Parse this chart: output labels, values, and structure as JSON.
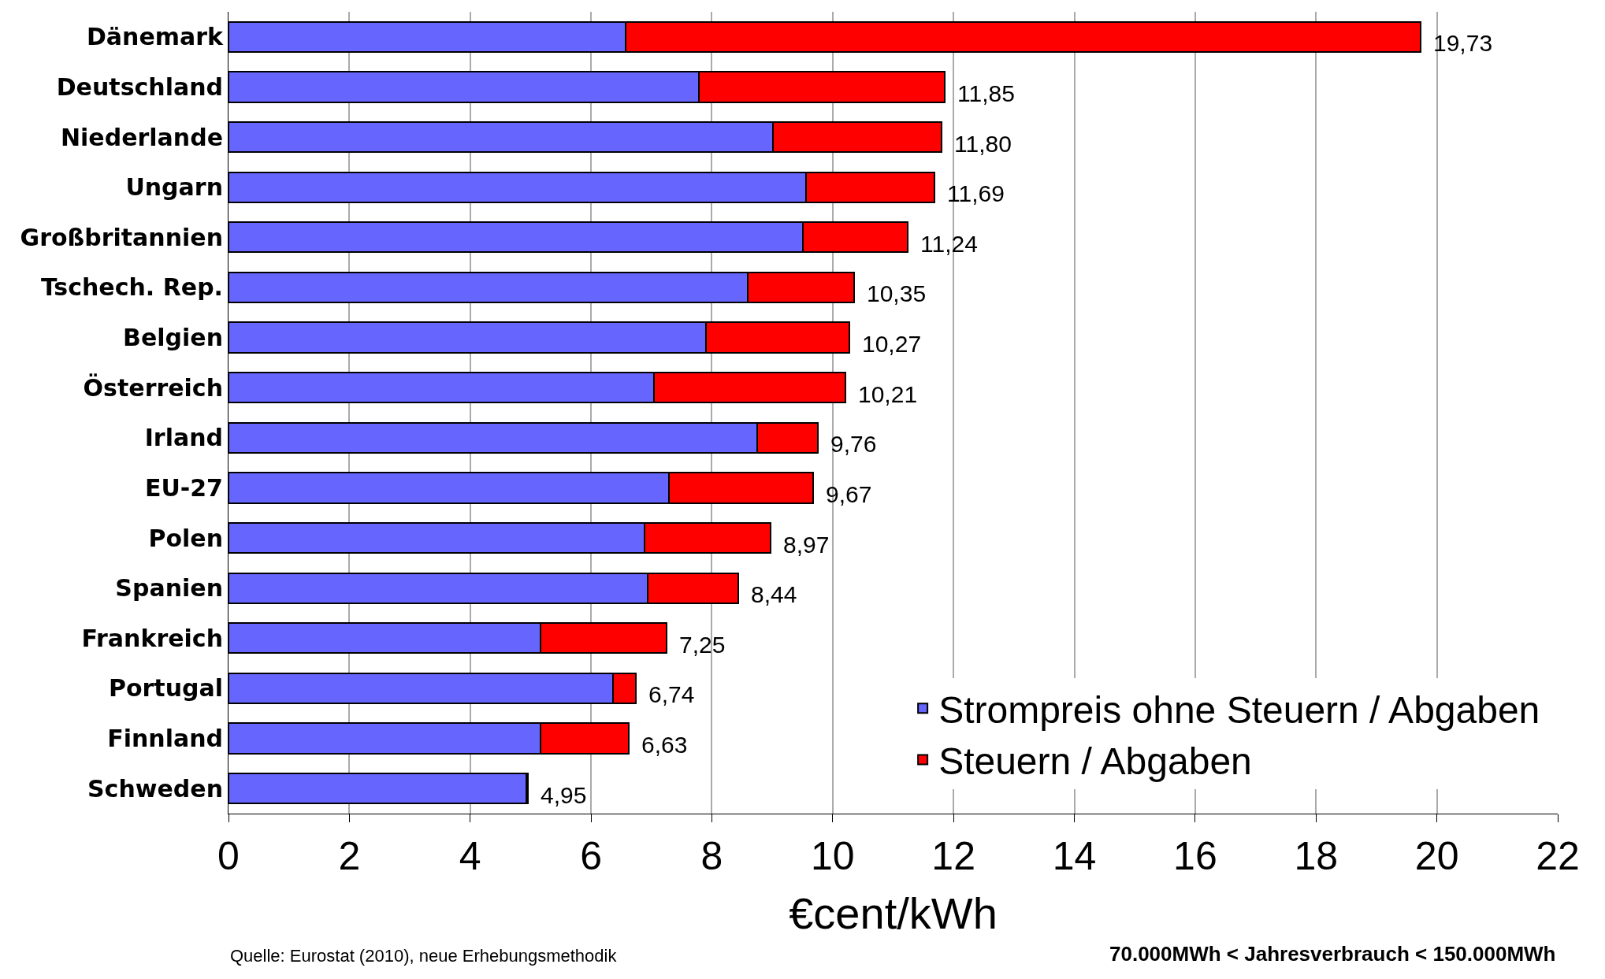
{
  "chart_data": {
    "type": "bar",
    "orientation": "horizontal",
    "stacked": true,
    "categories": [
      "Dänemark",
      "Deutschland",
      "Niederlande",
      "Ungarn",
      "Großbritannien",
      "Tschech. Rep.",
      "Belgien",
      "Österreich",
      "Irland",
      "EU-27",
      "Polen",
      "Spanien",
      "Frankreich",
      "Portugal",
      "Finnland",
      "Schweden"
    ],
    "series": [
      {
        "name": "Strompreis ohne Steuern / Abgaben",
        "color": "#6666ff",
        "values": [
          6.57,
          7.79,
          9.01,
          9.56,
          9.51,
          8.59,
          7.9,
          7.04,
          8.75,
          7.29,
          6.89,
          6.94,
          5.17,
          6.36,
          5.17,
          4.93
        ]
      },
      {
        "name": "Steuern / Abgaben",
        "color": "#ff0000",
        "values": [
          13.16,
          4.06,
          2.79,
          2.13,
          1.73,
          1.76,
          2.37,
          3.17,
          1.01,
          2.38,
          2.08,
          1.5,
          2.08,
          0.38,
          1.46,
          0.02
        ]
      }
    ],
    "totals": [
      "19,73",
      "11,85",
      "11,80",
      "11,69",
      "11,24",
      "10,35",
      "10,27",
      "10,21",
      "9,76",
      "9,67",
      "8,97",
      "8,44",
      "7,25",
      "6,74",
      "6,63",
      "4,95"
    ],
    "xlabel": "€cent/kWh",
    "xlim": [
      0,
      22
    ],
    "xticks": [
      0,
      2,
      4,
      6,
      8,
      10,
      12,
      14,
      16,
      18,
      20,
      22
    ],
    "grid": "x",
    "legend": "bottom right",
    "annotations": [
      "Quelle: Eurostat (2010), neue Erhebungsmethodik",
      "70.000MWh < Jahresverbrauch < 150.000MWh"
    ]
  }
}
